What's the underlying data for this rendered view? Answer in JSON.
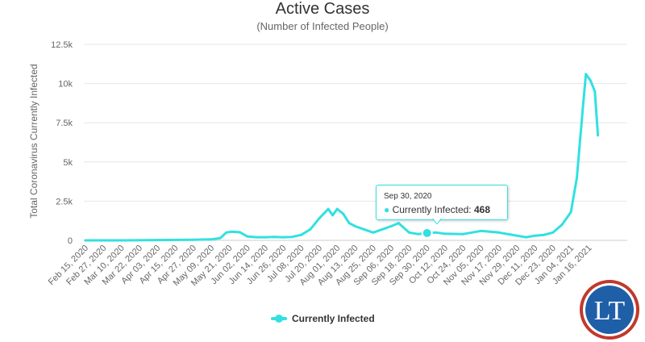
{
  "chart_data": {
    "type": "line",
    "title": "Active Cases",
    "subtitle": "(Number of Infected People)",
    "ylabel": "Total Coronavirus Currently Infected",
    "xlabel": "",
    "ylim": [
      0,
      12500
    ],
    "y_ticks": [
      0,
      2500,
      5000,
      7500,
      10000,
      12500
    ],
    "y_tick_labels": [
      "0",
      "2.5k",
      "5k",
      "7.5k",
      "10k",
      "12.5k"
    ],
    "x_tick_labels": [
      "Feb 15, 2020",
      "Feb 27, 2020",
      "Mar 10, 2020",
      "Mar 22, 2020",
      "Apr 03, 2020",
      "Apr 15, 2020",
      "Apr 27, 2020",
      "May 09, 2020",
      "May 21, 2020",
      "Jun 02, 2020",
      "Jun 14, 2020",
      "Jun 26, 2020",
      "Jul 08, 2020",
      "Jul 20, 2020",
      "Aug 01, 2020",
      "Aug 13, 2020",
      "Aug 25, 2020",
      "Sep 06, 2020",
      "Sep 18, 2020",
      "Sep 30, 2020",
      "Oct 12, 2020",
      "Oct 24, 2020",
      "Nov 05, 2020",
      "Nov 17, 2020",
      "Nov 29, 2020",
      "Dec 11, 2020",
      "Dec 23, 2020",
      "Jan 04, 2021",
      "Jan 16, 2021"
    ],
    "grid": true,
    "legend_position": "bottom-center",
    "series": [
      {
        "name": "Currently Infected",
        "color": "#33e0e0",
        "points": [
          [
            "Feb 15, 2020",
            0
          ],
          [
            "Mar 10, 2020",
            0
          ],
          [
            "Apr 03, 2020",
            20
          ],
          [
            "Apr 27, 2020",
            40
          ],
          [
            "May 09, 2020",
            60
          ],
          [
            "May 15, 2020",
            150
          ],
          [
            "May 19, 2020",
            500
          ],
          [
            "May 22, 2020",
            550
          ],
          [
            "May 28, 2020",
            520
          ],
          [
            "Jun 02, 2020",
            250
          ],
          [
            "Jun 08, 2020",
            200
          ],
          [
            "Jun 14, 2020",
            200
          ],
          [
            "Jun 20, 2020",
            220
          ],
          [
            "Jun 26, 2020",
            200
          ],
          [
            "Jul 02, 2020",
            220
          ],
          [
            "Jul 08, 2020",
            350
          ],
          [
            "Jul 14, 2020",
            700
          ],
          [
            "Jul 20, 2020",
            1400
          ],
          [
            "Jul 26, 2020",
            2000
          ],
          [
            "Jul 29, 2020",
            1600
          ],
          [
            "Aug 01, 2020",
            2000
          ],
          [
            "Aug 05, 2020",
            1700
          ],
          [
            "Aug 09, 2020",
            1100
          ],
          [
            "Aug 13, 2020",
            900
          ],
          [
            "Aug 19, 2020",
            700
          ],
          [
            "Aug 25, 2020",
            500
          ],
          [
            "Aug 31, 2020",
            700
          ],
          [
            "Sep 06, 2020",
            900
          ],
          [
            "Sep 11, 2020",
            1100
          ],
          [
            "Sep 18, 2020",
            500
          ],
          [
            "Sep 24, 2020",
            400
          ],
          [
            "Sep 30, 2020",
            468
          ],
          [
            "Oct 06, 2020",
            500
          ],
          [
            "Oct 12, 2020",
            420
          ],
          [
            "Oct 24, 2020",
            400
          ],
          [
            "Nov 05, 2020",
            600
          ],
          [
            "Nov 17, 2020",
            500
          ],
          [
            "Nov 29, 2020",
            300
          ],
          [
            "Dec 05, 2020",
            200
          ],
          [
            "Dec 11, 2020",
            300
          ],
          [
            "Dec 17, 2020",
            350
          ],
          [
            "Dec 23, 2020",
            500
          ],
          [
            "Dec 29, 2020",
            1000
          ],
          [
            "Jan 04, 2021",
            1800
          ],
          [
            "Jan 08, 2021",
            4000
          ],
          [
            "Jan 12, 2021",
            8500
          ],
          [
            "Jan 14, 2021",
            10600
          ],
          [
            "Jan 17, 2021",
            10200
          ],
          [
            "Jan 20, 2021",
            9500
          ],
          [
            "Jan 22, 2021",
            6700
          ]
        ]
      }
    ],
    "tooltip": {
      "date": "Sep 30, 2020",
      "series_label": "Currently Infected: ",
      "value": "468",
      "bullet": "●"
    }
  },
  "legend": {
    "label": "Currently Infected",
    "color": "#33e0e0"
  },
  "logo": {
    "text": "LT",
    "bg_color": "#1f5fa8",
    "ring_color": "#ffffff"
  }
}
